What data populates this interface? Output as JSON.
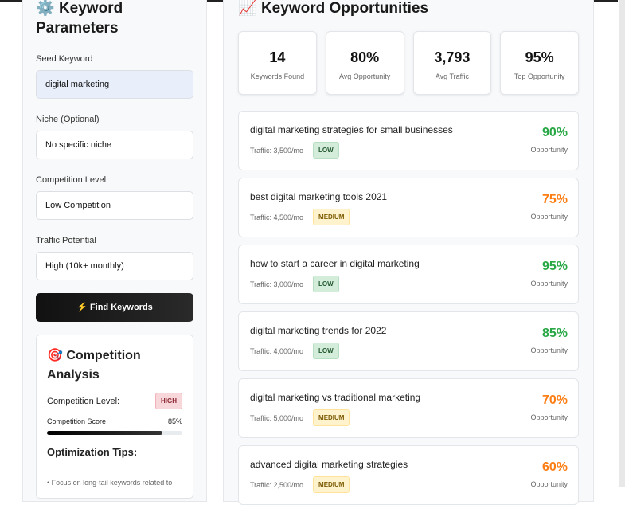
{
  "params": {
    "title": "Keyword Parameters",
    "icon": "⚙️",
    "seed_label": "Seed Keyword",
    "seed_value": "digital marketing",
    "niche_label": "Niche (Optional)",
    "niche_value": "No specific niche",
    "competition_label": "Competition Level",
    "competition_value": "Low Competition",
    "traffic_label": "Traffic Potential",
    "traffic_value": "High (10k+ monthly)",
    "find_button": "⚡ Find Keywords"
  },
  "competition": {
    "icon": "🎯",
    "title": "Competition Analysis",
    "level_label": "Competition Level:",
    "level_badge": "HIGH",
    "score_label": "Competition Score",
    "score_value": "85%",
    "score_fraction": 0.85,
    "tips_title": "Optimization Tips:",
    "tips": [
      "• Focus on long-tail keywords related to"
    ]
  },
  "opportunities": {
    "icon": "📈",
    "title": "Keyword Opportunities",
    "stats": [
      {
        "value": "14",
        "label": "Keywords Found"
      },
      {
        "value": "80%",
        "label": "Avg Opportunity"
      },
      {
        "value": "3,793",
        "label": "Avg Traffic"
      },
      {
        "value": "95%",
        "label": "Top Opportunity"
      }
    ],
    "opportunity_label": "Opportunity",
    "keywords": [
      {
        "text": "digital marketing strategies for small businesses",
        "traffic": "Traffic: 3,500/mo",
        "level": "LOW",
        "score": "90%",
        "color": "#28a745"
      },
      {
        "text": "best digital marketing tools 2021",
        "traffic": "Traffic: 4,500/mo",
        "level": "MEDIUM",
        "score": "75%",
        "color": "#fd7e14"
      },
      {
        "text": "how to start a career in digital marketing",
        "traffic": "Traffic: 3,000/mo",
        "level": "LOW",
        "score": "95%",
        "color": "#28a745"
      },
      {
        "text": "digital marketing trends for 2022",
        "traffic": "Traffic: 4,000/mo",
        "level": "LOW",
        "score": "85%",
        "color": "#28a745"
      },
      {
        "text": "digital marketing vs traditional marketing",
        "traffic": "Traffic: 5,000/mo",
        "level": "MEDIUM",
        "score": "70%",
        "color": "#fd7e14"
      },
      {
        "text": "advanced digital marketing strategies",
        "traffic": "Traffic: 2,500/mo",
        "level": "MEDIUM",
        "score": "60%",
        "color": "#fd7e14"
      }
    ]
  }
}
